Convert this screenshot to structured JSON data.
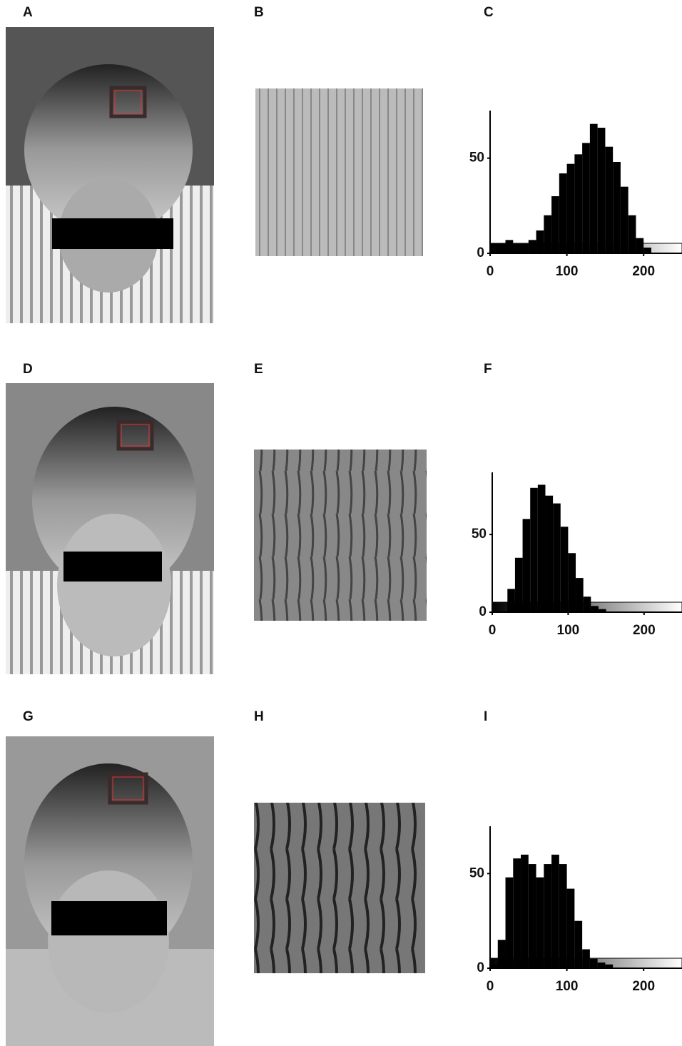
{
  "figure": {
    "panel_labels": [
      "A",
      "B",
      "C",
      "D",
      "E",
      "F",
      "G",
      "H",
      "I"
    ]
  },
  "chart_data": [
    {
      "type": "histogram",
      "color": "#000000",
      "bins": [
        0,
        10,
        20,
        30,
        40,
        50,
        60,
        70,
        80,
        90,
        100,
        110,
        120,
        130,
        140,
        150,
        160,
        170,
        180,
        190,
        200,
        210,
        220,
        230,
        240,
        250
      ],
      "values": [
        5,
        5,
        7,
        5,
        5,
        7,
        12,
        20,
        30,
        42,
        47,
        52,
        58,
        68,
        66,
        56,
        48,
        35,
        20,
        8,
        3,
        0,
        0,
        0,
        0
      ],
      "xlim": [
        0,
        250
      ],
      "ylim": [
        0,
        75
      ],
      "xticks": [
        0,
        100,
        200
      ],
      "yticks": [
        0,
        50
      ]
    },
    {
      "type": "histogram",
      "color": "#000000",
      "bins": [
        0,
        10,
        20,
        30,
        40,
        50,
        60,
        70,
        80,
        90,
        100,
        110,
        120,
        130,
        140,
        150,
        160,
        170,
        180,
        190,
        200,
        210,
        220,
        230,
        240,
        250
      ],
      "values": [
        0,
        0,
        15,
        35,
        60,
        80,
        82,
        75,
        70,
        55,
        38,
        22,
        10,
        4,
        2,
        0,
        0,
        0,
        0,
        0,
        0,
        0,
        0,
        0,
        0
      ],
      "xlim": [
        0,
        250
      ],
      "ylim": [
        0,
        90
      ],
      "xticks": [
        0,
        100,
        200
      ],
      "yticks": [
        0,
        50
      ]
    },
    {
      "type": "histogram",
      "color": "#000000",
      "bins": [
        0,
        10,
        20,
        30,
        40,
        50,
        60,
        70,
        80,
        90,
        100,
        110,
        120,
        130,
        140,
        150,
        160,
        170,
        180,
        190,
        200,
        210,
        220,
        230,
        240,
        250
      ],
      "values": [
        2,
        15,
        48,
        58,
        60,
        55,
        48,
        55,
        60,
        55,
        42,
        25,
        10,
        5,
        3,
        2,
        0,
        0,
        0,
        0,
        0,
        0,
        0,
        0,
        0
      ],
      "xlim": [
        0,
        250
      ],
      "ylim": [
        0,
        75
      ],
      "xticks": [
        0,
        100,
        200
      ],
      "yticks": [
        0,
        50
      ]
    }
  ]
}
